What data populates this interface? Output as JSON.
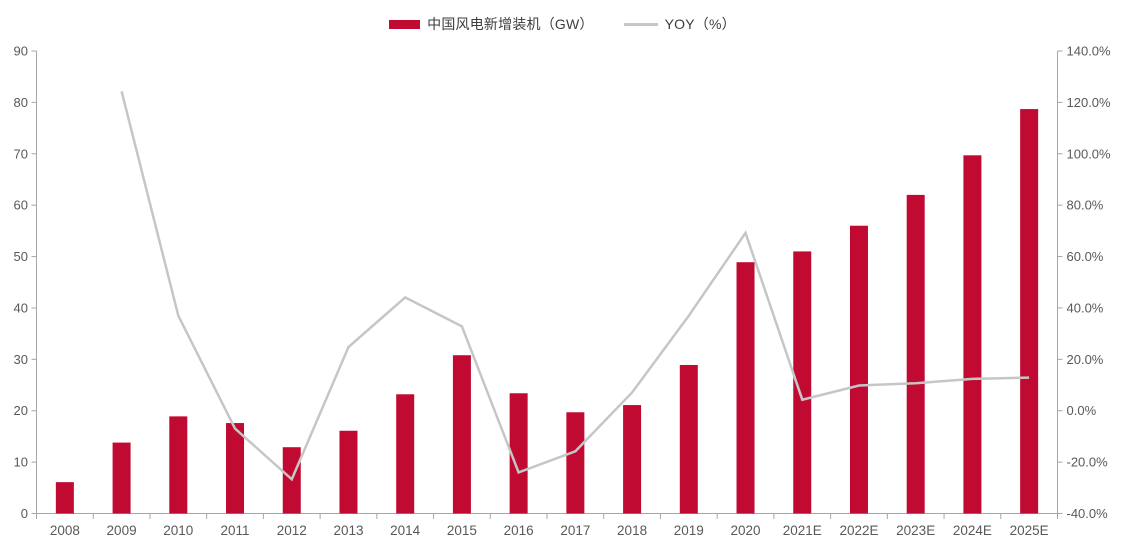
{
  "chart_data": {
    "type": "combo",
    "title": "",
    "categories": [
      "2008",
      "2009",
      "2010",
      "2011",
      "2012",
      "2013",
      "2014",
      "2015",
      "2016",
      "2017",
      "2018",
      "2019",
      "2020",
      "2021E",
      "2022E",
      "2023E",
      "2024E",
      "2025E"
    ],
    "series": [
      {
        "name": "中国风电新增装机（GW）",
        "type": "bar",
        "axis": "left",
        "color": "#c00a32",
        "values": [
          6.1,
          13.8,
          18.9,
          17.6,
          12.9,
          16.1,
          23.2,
          30.8,
          23.4,
          19.7,
          21.1,
          28.9,
          48.9,
          51.0,
          56.0,
          62.0,
          69.7,
          78.7
        ]
      },
      {
        "name": "YOY（%）",
        "type": "line",
        "axis": "right",
        "color": "#c6c6c6",
        "values": [
          null,
          124.3,
          37.0,
          -6.9,
          -26.7,
          24.8,
          44.1,
          32.8,
          -24.0,
          -15.8,
          7.1,
          37.0,
          69.2,
          4.3,
          9.8,
          10.7,
          12.4,
          12.9
        ]
      }
    ],
    "left_axis": {
      "min": 0,
      "max": 90,
      "step": 10,
      "tick_labels": [
        "0",
        "10",
        "20",
        "30",
        "40",
        "50",
        "60",
        "70",
        "80",
        "90"
      ]
    },
    "right_axis": {
      "min": -40,
      "max": 140,
      "step": 20,
      "tick_labels": [
        "-40.0%",
        "-20.0%",
        "0.0%",
        "20.0%",
        "40.0%",
        "60.0%",
        "80.0%",
        "100.0%",
        "120.0%",
        "140.0%"
      ]
    },
    "legend_position": "top-center",
    "grid": false,
    "colors": {
      "axis": "#a6a6a6",
      "tick_text": "#595959",
      "background": "#ffffff"
    }
  }
}
